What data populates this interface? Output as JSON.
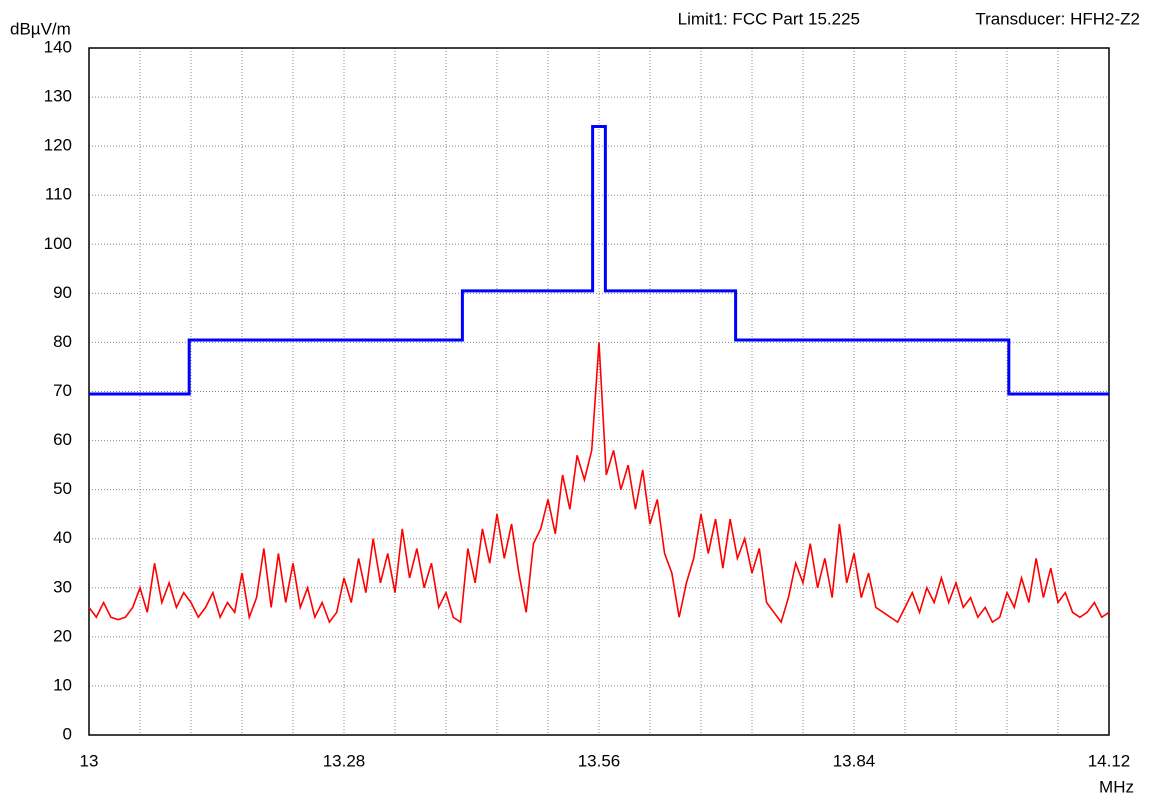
{
  "chart_data": {
    "type": "line",
    "y_label": "dBµV/m",
    "x_label": "MHz",
    "annotations": [
      "Limit1: FCC Part 15.225",
      "Transducer: HFH2-Z2"
    ],
    "xlim": [
      13,
      14.12
    ],
    "ylim": [
      0,
      140
    ],
    "xticks": [
      13,
      13.28,
      13.56,
      13.84,
      14.12
    ],
    "xminor_ticks": [
      13.056,
      13.112,
      13.168,
      13.224,
      13.336,
      13.392,
      13.448,
      13.504,
      13.616,
      13.672,
      13.728,
      13.784,
      13.896,
      13.952,
      14.008,
      14.064
    ],
    "yticks": [
      0,
      10,
      20,
      30,
      40,
      50,
      60,
      70,
      80,
      90,
      100,
      110,
      120,
      130,
      140
    ],
    "grid": true,
    "series": [
      {
        "color": "#0000ff",
        "x": [
          13,
          13.11,
          13.11,
          13.41,
          13.41,
          13.553,
          13.553,
          13.567,
          13.567,
          13.71,
          13.71,
          14.01,
          14.01,
          14.12
        ],
        "values": [
          69.5,
          69.5,
          80.5,
          80.5,
          90.5,
          90.5,
          124,
          124,
          90.5,
          90.5,
          80.5,
          80.5,
          69.5,
          69.5
        ]
      },
      {
        "color": "#ff0000",
        "x": [
          13.0,
          13.008,
          13.016,
          13.024,
          13.032,
          13.04,
          13.048,
          13.056,
          13.064,
          13.072,
          13.08,
          13.088,
          13.096,
          13.104,
          13.112,
          13.12,
          13.128,
          13.136,
          13.144,
          13.152,
          13.16,
          13.168,
          13.176,
          13.184,
          13.192,
          13.2,
          13.208,
          13.216,
          13.224,
          13.232,
          13.24,
          13.248,
          13.256,
          13.264,
          13.272,
          13.28,
          13.288,
          13.296,
          13.304,
          13.312,
          13.32,
          13.328,
          13.336,
          13.344,
          13.352,
          13.36,
          13.368,
          13.376,
          13.384,
          13.392,
          13.4,
          13.408,
          13.416,
          13.424,
          13.432,
          13.44,
          13.448,
          13.456,
          13.464,
          13.472,
          13.48,
          13.488,
          13.496,
          13.504,
          13.512,
          13.52,
          13.528,
          13.536,
          13.544,
          13.552,
          13.56,
          13.568,
          13.576,
          13.584,
          13.592,
          13.6,
          13.608,
          13.616,
          13.624,
          13.632,
          13.64,
          13.648,
          13.656,
          13.664,
          13.672,
          13.68,
          13.688,
          13.696,
          13.704,
          13.712,
          13.72,
          13.728,
          13.736,
          13.744,
          13.752,
          13.76,
          13.768,
          13.776,
          13.784,
          13.792,
          13.8,
          13.808,
          13.816,
          13.824,
          13.832,
          13.84,
          13.848,
          13.856,
          13.864,
          13.872,
          13.88,
          13.888,
          13.896,
          13.904,
          13.912,
          13.92,
          13.928,
          13.936,
          13.944,
          13.952,
          13.96,
          13.968,
          13.976,
          13.984,
          13.992,
          14.0,
          14.008,
          14.016,
          14.024,
          14.032,
          14.04,
          14.048,
          14.056,
          14.064,
          14.072,
          14.08,
          14.088,
          14.096,
          14.104,
          14.112,
          14.12
        ],
        "values": [
          26,
          24,
          27,
          24,
          23.5,
          24,
          26,
          30,
          25,
          35,
          27,
          31,
          26,
          29,
          27,
          24,
          26,
          29,
          24,
          27,
          25,
          33,
          24,
          28,
          38,
          26,
          37,
          27,
          35,
          26,
          30,
          24,
          27,
          23,
          25,
          32,
          27,
          36,
          29,
          40,
          31,
          37,
          29,
          42,
          32,
          38,
          30,
          35,
          26,
          29,
          24,
          23,
          38,
          31,
          42,
          35,
          45,
          36,
          43,
          33,
          25,
          39,
          42,
          48,
          41,
          53,
          46,
          57,
          52,
          58,
          80,
          53,
          58,
          50,
          55,
          46,
          54,
          43,
          48,
          37,
          33,
          24,
          31,
          36,
          45,
          37,
          44,
          34,
          44,
          36,
          40,
          33,
          38,
          27,
          25,
          23,
          28,
          35,
          31,
          39,
          30,
          36,
          28,
          43,
          31,
          37,
          28,
          33,
          26,
          25,
          24,
          23,
          26,
          29,
          25,
          30,
          27,
          32,
          27,
          31,
          26,
          28,
          24,
          26,
          23,
          24,
          29,
          26,
          32,
          27,
          36,
          28,
          34,
          27,
          29,
          25,
          24,
          25,
          27,
          24,
          25
        ]
      }
    ]
  }
}
